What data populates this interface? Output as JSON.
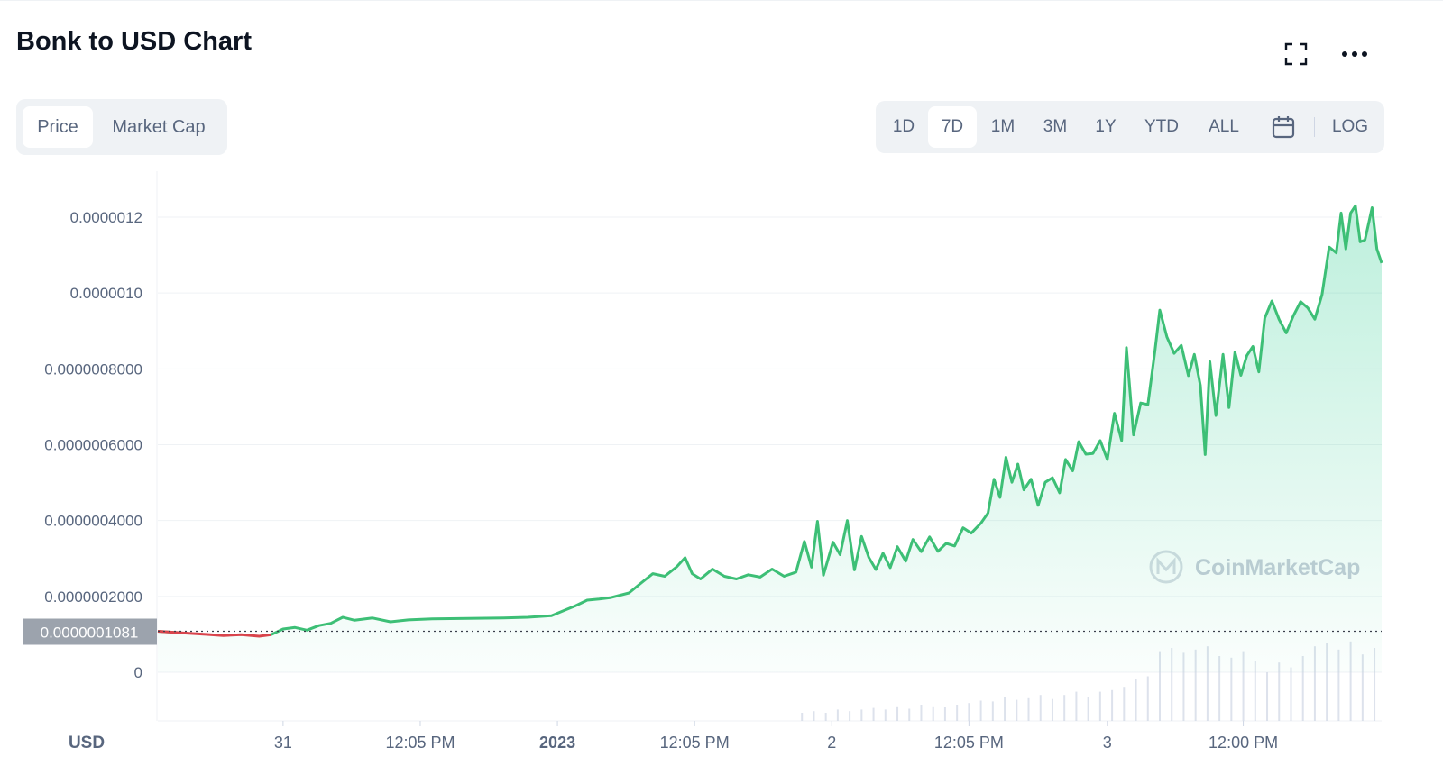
{
  "title": "Bonk to USD Chart",
  "header": {
    "fullscreen_icon": "fullscreen-icon",
    "more_icon": "more-horizontal-icon"
  },
  "metric_tabs": [
    {
      "label": "Price",
      "active": true
    },
    {
      "label": "Market Cap",
      "active": false
    }
  ],
  "range_tabs": [
    {
      "label": "1D",
      "active": false
    },
    {
      "label": "7D",
      "active": true
    },
    {
      "label": "1M",
      "active": false
    },
    {
      "label": "3M",
      "active": false
    },
    {
      "label": "1Y",
      "active": false
    },
    {
      "label": "YTD",
      "active": false
    },
    {
      "label": "ALL",
      "active": false
    }
  ],
  "calendar_icon": "calendar-icon",
  "log_label": "LOG",
  "watermark": "CoinMarketCap",
  "colors": {
    "up": "#3dbf76",
    "down": "#d9444c",
    "fill": "#16c784",
    "grid": "#eff2f5",
    "label": "#58667e",
    "current_badge": "#9ca3ad",
    "volume": "#cfd6e4"
  },
  "chart_data": {
    "type": "area",
    "currency_label": "USD",
    "y_ticks": [
      "0.0000012",
      "0.0000010",
      "0.0000008000",
      "0.0000006000",
      "0.0000004000",
      "0.0000002000",
      "0"
    ],
    "y_tick_values": [
      1.2e-06,
      1e-06,
      8e-07,
      6e-07,
      4e-07,
      2e-07,
      0
    ],
    "ylim": [
      0,
      1.22e-06
    ],
    "current_value_label": "0.0000001081",
    "current_value": 1.081e-07,
    "x_ticks": [
      {
        "label": "31",
        "t": 0.105,
        "bold": false
      },
      {
        "label": "12:05 PM",
        "t": 0.22,
        "bold": false
      },
      {
        "label": "2023",
        "t": 0.335,
        "bold": true
      },
      {
        "label": "12:05 PM",
        "t": 0.45,
        "bold": false
      },
      {
        "label": "2",
        "t": 0.565,
        "bold": false
      },
      {
        "label": "12:05 PM",
        "t": 0.68,
        "bold": false
      },
      {
        "label": "3",
        "t": 0.796,
        "bold": false
      },
      {
        "label": "12:00 PM",
        "t": 0.91,
        "bold": false
      }
    ],
    "series": [
      {
        "points": [
          [
            0.0,
            1.08e-07
          ],
          [
            0.02,
            1.04e-07
          ],
          [
            0.04,
            1e-07
          ],
          [
            0.055,
            9.7e-08
          ],
          [
            0.07,
            9.9e-08
          ],
          [
            0.085,
            9.5e-08
          ],
          [
            0.095,
            9.9e-08
          ],
          [
            0.105,
            1.14e-07
          ],
          [
            0.115,
            1.18e-07
          ],
          [
            0.125,
            1.11e-07
          ],
          [
            0.135,
            1.23e-07
          ],
          [
            0.145,
            1.29e-07
          ],
          [
            0.155,
            1.45e-07
          ],
          [
            0.165,
            1.37e-07
          ],
          [
            0.18,
            1.43e-07
          ],
          [
            0.195,
            1.33e-07
          ],
          [
            0.21,
            1.38e-07
          ],
          [
            0.23,
            1.41e-07
          ],
          [
            0.26,
            1.42e-07
          ],
          [
            0.29,
            1.43e-07
          ],
          [
            0.31,
            1.45e-07
          ],
          [
            0.33,
            1.49e-07
          ],
          [
            0.34,
            1.62e-07
          ],
          [
            0.35,
            1.75e-07
          ],
          [
            0.36,
            1.9e-07
          ],
          [
            0.37,
            1.93e-07
          ],
          [
            0.38,
            1.97e-07
          ],
          [
            0.395,
            2.09e-07
          ],
          [
            0.405,
            2.35e-07
          ],
          [
            0.415,
            2.6e-07
          ],
          [
            0.425,
            2.53e-07
          ],
          [
            0.435,
            2.78e-07
          ],
          [
            0.442,
            3.02e-07
          ],
          [
            0.448,
            2.6e-07
          ],
          [
            0.455,
            2.46e-07
          ],
          [
            0.465,
            2.72e-07
          ],
          [
            0.475,
            2.53e-07
          ],
          [
            0.485,
            2.46e-07
          ],
          [
            0.495,
            2.57e-07
          ],
          [
            0.505,
            2.51e-07
          ],
          [
            0.515,
            2.72e-07
          ],
          [
            0.525,
            2.53e-07
          ],
          [
            0.535,
            2.64e-07
          ],
          [
            0.542,
            3.45e-07
          ],
          [
            0.548,
            2.77e-07
          ],
          [
            0.553,
            3.98e-07
          ],
          [
            0.558,
            2.56e-07
          ],
          [
            0.566,
            3.43e-07
          ],
          [
            0.572,
            3.1e-07
          ],
          [
            0.578,
            4e-07
          ],
          [
            0.584,
            2.7e-07
          ],
          [
            0.59,
            3.58e-07
          ],
          [
            0.596,
            3.03e-07
          ],
          [
            0.602,
            2.71e-07
          ],
          [
            0.608,
            3.14e-07
          ],
          [
            0.614,
            2.76e-07
          ],
          [
            0.62,
            3.31e-07
          ],
          [
            0.627,
            2.93e-07
          ],
          [
            0.633,
            3.5e-07
          ],
          [
            0.64,
            3.18e-07
          ],
          [
            0.647,
            3.57e-07
          ],
          [
            0.654,
            3.19e-07
          ],
          [
            0.661,
            3.4e-07
          ],
          [
            0.668,
            3.33e-07
          ],
          [
            0.675,
            3.81e-07
          ],
          [
            0.682,
            3.67e-07
          ],
          [
            0.69,
            3.93e-07
          ],
          [
            0.696,
            4.2e-07
          ],
          [
            0.701,
            5.09e-07
          ],
          [
            0.706,
            4.61e-07
          ],
          [
            0.711,
            5.67e-07
          ],
          [
            0.716,
            5.01e-07
          ],
          [
            0.721,
            5.49e-07
          ],
          [
            0.726,
            4.81e-07
          ],
          [
            0.732,
            5.09e-07
          ],
          [
            0.738,
            4.4e-07
          ],
          [
            0.744,
            5.01e-07
          ],
          [
            0.75,
            5.13e-07
          ],
          [
            0.756,
            4.73e-07
          ],
          [
            0.761,
            5.61e-07
          ],
          [
            0.767,
            5.31e-07
          ],
          [
            0.772,
            6.08e-07
          ],
          [
            0.778,
            5.75e-07
          ],
          [
            0.784,
            5.77e-07
          ],
          [
            0.79,
            6.11e-07
          ],
          [
            0.796,
            5.61e-07
          ],
          [
            0.802,
            6.83e-07
          ],
          [
            0.808,
            6.11e-07
          ],
          [
            0.812,
            8.56e-07
          ],
          [
            0.818,
            6.26e-07
          ],
          [
            0.824,
            7.1e-07
          ],
          [
            0.83,
            7.06e-07
          ],
          [
            0.836,
            8.49e-07
          ],
          [
            0.84,
            9.55e-07
          ],
          [
            0.846,
            8.84e-07
          ],
          [
            0.852,
            8.41e-07
          ],
          [
            0.858,
            8.62e-07
          ],
          [
            0.864,
            7.82e-07
          ],
          [
            0.869,
            8.38e-07
          ],
          [
            0.874,
            7.56e-07
          ],
          [
            0.878,
            5.74e-07
          ],
          [
            0.882,
            8.19e-07
          ],
          [
            0.887,
            6.77e-07
          ],
          [
            0.893,
            8.38e-07
          ],
          [
            0.898,
            6.98e-07
          ],
          [
            0.903,
            8.44e-07
          ],
          [
            0.908,
            7.83e-07
          ],
          [
            0.913,
            8.35e-07
          ],
          [
            0.918,
            8.59e-07
          ],
          [
            0.923,
            7.92e-07
          ],
          [
            0.928,
            9.34e-07
          ],
          [
            0.934,
            9.79e-07
          ],
          [
            0.94,
            9.3e-07
          ],
          [
            0.946,
            8.95e-07
          ],
          [
            0.952,
            9.4e-07
          ],
          [
            0.958,
            9.77e-07
          ],
          [
            0.964,
            9.61e-07
          ],
          [
            0.97,
            9.31e-07
          ],
          [
            0.976,
            9.96e-07
          ],
          [
            0.982,
            1.121e-06
          ],
          [
            0.988,
            1.106e-06
          ],
          [
            0.992,
            1.211e-06
          ],
          [
            0.996,
            1.116e-06
          ],
          [
            1.0,
            1.211e-06
          ],
          [
            1.004,
            1.23e-06
          ],
          [
            1.008,
            1.135e-06
          ],
          [
            1.012,
            1.14e-06
          ],
          [
            1.018,
            1.225e-06
          ],
          [
            1.022,
            1.116e-06
          ],
          [
            1.026,
            1.079e-06
          ]
        ],
        "down_until": 0.096
      }
    ],
    "volume": [
      {
        "t": 0.54,
        "h": 0.1
      },
      {
        "t": 0.55,
        "h": 0.12
      },
      {
        "t": 0.56,
        "h": 0.1
      },
      {
        "t": 0.57,
        "h": 0.14
      },
      {
        "t": 0.58,
        "h": 0.12
      },
      {
        "t": 0.59,
        "h": 0.14
      },
      {
        "t": 0.6,
        "h": 0.16
      },
      {
        "t": 0.61,
        "h": 0.14
      },
      {
        "t": 0.62,
        "h": 0.18
      },
      {
        "t": 0.63,
        "h": 0.15
      },
      {
        "t": 0.64,
        "h": 0.2
      },
      {
        "t": 0.65,
        "h": 0.18
      },
      {
        "t": 0.66,
        "h": 0.17
      },
      {
        "t": 0.67,
        "h": 0.2
      },
      {
        "t": 0.68,
        "h": 0.22
      },
      {
        "t": 0.69,
        "h": 0.25
      },
      {
        "t": 0.7,
        "h": 0.24
      },
      {
        "t": 0.71,
        "h": 0.3
      },
      {
        "t": 0.72,
        "h": 0.26
      },
      {
        "t": 0.73,
        "h": 0.28
      },
      {
        "t": 0.74,
        "h": 0.32
      },
      {
        "t": 0.75,
        "h": 0.27
      },
      {
        "t": 0.76,
        "h": 0.32
      },
      {
        "t": 0.77,
        "h": 0.36
      },
      {
        "t": 0.78,
        "h": 0.3
      },
      {
        "t": 0.79,
        "h": 0.36
      },
      {
        "t": 0.8,
        "h": 0.38
      },
      {
        "t": 0.81,
        "h": 0.42
      },
      {
        "t": 0.82,
        "h": 0.52
      },
      {
        "t": 0.83,
        "h": 0.55
      },
      {
        "t": 0.84,
        "h": 0.86
      },
      {
        "t": 0.85,
        "h": 0.9
      },
      {
        "t": 0.86,
        "h": 0.84
      },
      {
        "t": 0.87,
        "h": 0.88
      },
      {
        "t": 0.88,
        "h": 0.92
      },
      {
        "t": 0.89,
        "h": 0.8
      },
      {
        "t": 0.9,
        "h": 0.78
      },
      {
        "t": 0.91,
        "h": 0.86
      },
      {
        "t": 0.92,
        "h": 0.74
      },
      {
        "t": 0.93,
        "h": 0.6
      },
      {
        "t": 0.94,
        "h": 0.72
      },
      {
        "t": 0.95,
        "h": 0.66
      },
      {
        "t": 0.96,
        "h": 0.8
      },
      {
        "t": 0.97,
        "h": 0.92
      },
      {
        "t": 0.98,
        "h": 0.96
      },
      {
        "t": 0.99,
        "h": 0.88
      },
      {
        "t": 1.0,
        "h": 0.98
      },
      {
        "t": 1.01,
        "h": 0.82
      },
      {
        "t": 1.02,
        "h": 0.9
      }
    ]
  }
}
